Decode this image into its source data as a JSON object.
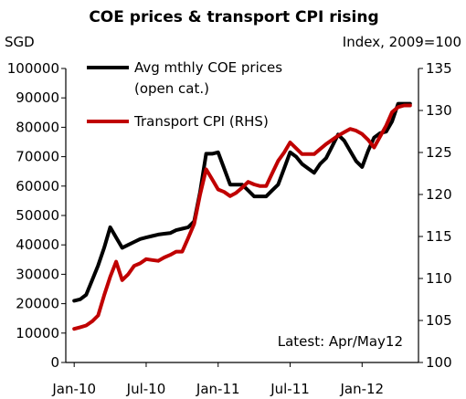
{
  "chart_data": {
    "type": "line",
    "title": "COE prices & transport CPI rising",
    "left_unit": "SGD",
    "right_unit": "Index, 2009=100",
    "annotation": "Latest: Apr/May12",
    "y_left": {
      "min": 0,
      "max": 100000,
      "ticks": [
        "0",
        "10000",
        "20000",
        "30000",
        "40000",
        "50000",
        "60000",
        "70000",
        "80000",
        "90000",
        "100000"
      ]
    },
    "y_right": {
      "min": 100,
      "max": 135,
      "ticks": [
        "100",
        "105",
        "110",
        "115",
        "120",
        "125",
        "130",
        "135"
      ]
    },
    "x_ticks": [
      {
        "label": "Jan-10",
        "month": 0
      },
      {
        "label": "Jul-10",
        "month": 6
      },
      {
        "label": "Jan-11",
        "month": 12
      },
      {
        "label": "Jul-11",
        "month": 18
      },
      {
        "label": "Jan-12",
        "month": 24
      }
    ],
    "x_range": [
      -0.7,
      28.7
    ],
    "series": [
      {
        "name": "Avg mthly COE prices (open cat.)",
        "legend_lines": [
          "Avg mthly COE prices",
          "(open cat.)"
        ],
        "axis": "left",
        "color": "#000000",
        "x": [
          0,
          0.5,
          1,
          1.5,
          2,
          2.5,
          3,
          3.5,
          4,
          4.5,
          5,
          5.5,
          6,
          6.5,
          7,
          7.5,
          8,
          8.5,
          9,
          9.5,
          10,
          10.5,
          11,
          11.5,
          12,
          12.5,
          13,
          13.5,
          14,
          14.5,
          15,
          15.5,
          16,
          16.5,
          17,
          17.5,
          18,
          18.5,
          19,
          19.5,
          20,
          20.5,
          21,
          21.5,
          22,
          22.5,
          23,
          23.5,
          24,
          24.5,
          25,
          25.5,
          26,
          26.5,
          27,
          27.5,
          28
        ],
        "values": [
          21000,
          21500,
          23000,
          28000,
          33000,
          39000,
          46000,
          42500,
          39000,
          40000,
          41000,
          42000,
          42500,
          43000,
          43500,
          43800,
          44000,
          45000,
          45500,
          46000,
          48000,
          58000,
          71000,
          71000,
          71500,
          66000,
          60500,
          60500,
          60500,
          58500,
          56500,
          56500,
          56500,
          58500,
          60500,
          66000,
          71500,
          70000,
          67500,
          66000,
          64500,
          67500,
          69500,
          73500,
          77500,
          75500,
          72000,
          68500,
          66500,
          72000,
          76500,
          78000,
          78500,
          82000,
          88000,
          88000,
          88000
        ]
      },
      {
        "name": "Transport CPI (RHS)",
        "legend_lines": [
          "Transport CPI (RHS)"
        ],
        "axis": "right",
        "color": "#c00000",
        "x": [
          0,
          0.5,
          1,
          1.5,
          2,
          2.5,
          3,
          3.5,
          4,
          4.5,
          5,
          5.5,
          6,
          6.5,
          7,
          7.5,
          8,
          8.5,
          9,
          9.5,
          10,
          10.5,
          11,
          11.5,
          12,
          12.5,
          13,
          13.5,
          14,
          14.5,
          15,
          15.5,
          16,
          16.5,
          17,
          17.5,
          18,
          18.5,
          19,
          19.5,
          20,
          20.5,
          21,
          21.5,
          22,
          22.5,
          23,
          23.5,
          24,
          24.5,
          25,
          25.5,
          26,
          26.5,
          27,
          27.5,
          28
        ],
        "values": [
          104,
          104.2,
          104.4,
          104.9,
          105.6,
          108,
          110.2,
          112,
          109.8,
          110.5,
          111.5,
          111.8,
          112.3,
          112.2,
          112.1,
          112.5,
          112.8,
          113.2,
          113.2,
          114.8,
          116.5,
          120,
          123,
          121.8,
          120.6,
          120.3,
          119.8,
          120.2,
          120.8,
          121.5,
          121.2,
          121,
          121,
          122.5,
          124,
          125,
          126.2,
          125.5,
          124.8,
          124.8,
          124.8,
          125.4,
          126,
          126.5,
          127,
          127.4,
          127.8,
          127.6,
          127.2,
          126.5,
          125.6,
          126.9,
          128.2,
          129.8,
          130.4,
          130.6,
          130.6
        ]
      }
    ],
    "grid": false,
    "legend_position": "top-left"
  }
}
